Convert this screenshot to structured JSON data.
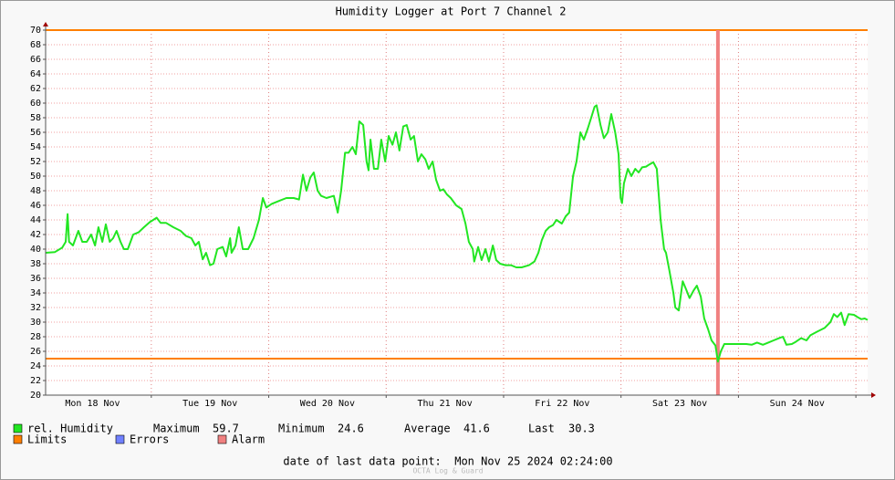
{
  "chart_data": {
    "type": "line",
    "title": "Humidity Logger at Port 7 Channel 2",
    "xlim": [
      2.4,
      170.4
    ],
    "xticks": [
      {
        "value": 12,
        "label": "Mon 18 Nov"
      },
      {
        "value": 36,
        "label": "Tue 19 Nov"
      },
      {
        "value": 60,
        "label": "Wed 20 Nov"
      },
      {
        "value": 84,
        "label": "Thu 21 Nov"
      },
      {
        "value": 108,
        "label": "Fri 22 Nov"
      },
      {
        "value": 132,
        "label": "Sat 23 Nov"
      },
      {
        "value": 156,
        "label": "Sun 24 Nov"
      }
    ],
    "xgrid": [
      24,
      48,
      72,
      96,
      120,
      144,
      168
    ],
    "ylim": [
      20,
      70
    ],
    "yticks": [
      20,
      22,
      24,
      26,
      28,
      30,
      32,
      34,
      36,
      38,
      40,
      42,
      44,
      46,
      48,
      50,
      52,
      54,
      56,
      58,
      60,
      62,
      64,
      66,
      68,
      70
    ],
    "grid": true,
    "series": [
      {
        "name": "rel. Humidity",
        "color": "#22e622",
        "x": [
          2.4,
          4.3,
          5.8,
          6.5,
          6.9,
          7.2,
          8.0,
          9.1,
          9.9,
          10.8,
          11.7,
          12.5,
          13.2,
          14.0,
          14.7,
          15.5,
          16.2,
          16.9,
          17.7,
          18.4,
          19.2,
          20.3,
          21.4,
          22.5,
          23.7,
          25.1,
          25.9,
          27.0,
          28.5,
          30.0,
          31.1,
          32.2,
          33.0,
          33.7,
          34.5,
          35.2,
          36.0,
          36.7,
          37.5,
          38.6,
          39.3,
          40.1,
          40.4,
          41.2,
          41.9,
          42.7,
          43.8,
          44.9,
          46.0,
          46.8,
          47.5,
          48.6,
          50.1,
          51.6,
          53.1,
          54.2,
          55.0,
          55.7,
          56.5,
          57.2,
          58.0,
          58.7,
          59.8,
          61.3,
          62.1,
          62.8,
          63.6,
          64.3,
          65.1,
          65.8,
          66.5,
          67.3,
          68.0,
          68.4,
          68.8,
          69.5,
          70.3,
          71.0,
          71.8,
          72.5,
          73.3,
          74.0,
          74.7,
          75.5,
          76.2,
          77.0,
          77.7,
          78.5,
          79.2,
          80.0,
          80.7,
          81.5,
          82.2,
          83.0,
          83.7,
          84.4,
          85.2,
          86.3,
          87.4,
          88.2,
          88.9,
          89.7,
          90.0,
          90.8,
          91.5,
          92.3,
          93.0,
          93.8,
          94.5,
          95.3,
          96.4,
          97.5,
          98.6,
          99.7,
          101.2,
          102.3,
          103.1,
          103.8,
          104.6,
          105.3,
          106.1,
          106.8,
          107.9,
          108.7,
          109.4,
          110.2,
          110.9,
          111.7,
          112.4,
          113.2,
          113.9,
          114.6,
          115.0,
          115.8,
          116.5,
          117.3,
          118.0,
          118.8,
          119.5,
          119.9,
          120.2,
          120.6,
          121.4,
          122.1,
          122.9,
          123.6,
          124.3,
          125.1,
          125.8,
          126.6,
          127.3,
          128.1,
          128.8,
          129.2,
          129.9,
          130.7,
          131.1,
          131.8,
          132.6,
          133.3,
          134.0,
          134.8,
          135.5,
          136.3,
          137.0,
          137.8,
          138.5,
          139.3,
          139.8,
          140.4,
          141.1,
          142.2,
          144.1,
          145.6,
          146.7,
          147.8,
          149.0,
          150.1,
          151.2,
          152.3,
          153.1,
          153.8,
          154.9,
          155.7,
          156.8,
          157.9,
          158.7,
          160.1,
          161.6,
          162.8,
          163.5,
          164.2,
          165.0,
          165.7,
          166.5,
          167.6,
          168.3,
          169.1,
          169.8,
          170.4
        ],
        "values": [
          39.5,
          39.6,
          40.2,
          41,
          44.8,
          41,
          40.5,
          42.5,
          41,
          41,
          42,
          40.5,
          43,
          41,
          43.4,
          41,
          41.5,
          42.5,
          41,
          40,
          40,
          42,
          42.3,
          43,
          43.7,
          44.3,
          43.6,
          43.6,
          43,
          42.5,
          41.8,
          41.5,
          40.5,
          41,
          38.6,
          39.5,
          37.8,
          38,
          40,
          40.3,
          39,
          41.5,
          39.5,
          40.5,
          43,
          40,
          40,
          41.5,
          44,
          47,
          45.7,
          46.2,
          46.6,
          47,
          47,
          46.8,
          50.2,
          48,
          49.8,
          50.5,
          48,
          47.3,
          47,
          47.3,
          45,
          48,
          53.2,
          53.2,
          54,
          53,
          57.5,
          57,
          52,
          50.8,
          55,
          51,
          51,
          55,
          52,
          55.5,
          54.3,
          56,
          53.5,
          56.8,
          57,
          55,
          55.5,
          52,
          53,
          52.3,
          51,
          52,
          49.5,
          48,
          48.2,
          47.5,
          47,
          46,
          45.5,
          43.5,
          41,
          40,
          38.3,
          40.3,
          38.5,
          40,
          38.3,
          40.5,
          38.5,
          38,
          37.8,
          37.8,
          37.5,
          37.5,
          37.8,
          38.3,
          39.5,
          41.2,
          42.5,
          43,
          43.3,
          44,
          43.5,
          44.5,
          45,
          50,
          52,
          56,
          55,
          56.5,
          58,
          59.5,
          59.7,
          57,
          55.2,
          56,
          58.5,
          56,
          53,
          47,
          46.3,
          49,
          51,
          50,
          51,
          50.5,
          51.2,
          51.3,
          51.6,
          51.9,
          51,
          44,
          40,
          39.5,
          37,
          34,
          32,
          31.6,
          35.6,
          34.5,
          33.3,
          34.3,
          35,
          33.5,
          30.5,
          29,
          27.5,
          26.8,
          24.6,
          26,
          27,
          27,
          27,
          27,
          26.9,
          27.2,
          26.9,
          27.2,
          27.5,
          27.8,
          28,
          26.9,
          27,
          27.3,
          27.8,
          27.5,
          28.2,
          28.7,
          29.2,
          30,
          31.1,
          30.7,
          31.3,
          29.6,
          31.1,
          31,
          30.7,
          30.4,
          30.5,
          30.3
        ]
      },
      {
        "name": "Limits",
        "color": "#ff7f00",
        "values": [
          25,
          70
        ]
      },
      {
        "name": "Errors",
        "color": "#7080ff",
        "values": []
      },
      {
        "name": "Alarm",
        "color": "#f08080",
        "x": [
          139.8
        ]
      }
    ],
    "stats": [
      {
        "label": "Maximum",
        "value": 59.7
      },
      {
        "label": "Minimum",
        "value": 24.6
      },
      {
        "label": "Average",
        "value": 41.6
      },
      {
        "label": "Last",
        "value": 30.3
      }
    ],
    "footer": "date of last data point:  Mon Nov 25 2024 02:24:00",
    "watermark": "OCTA Log & Guard"
  }
}
